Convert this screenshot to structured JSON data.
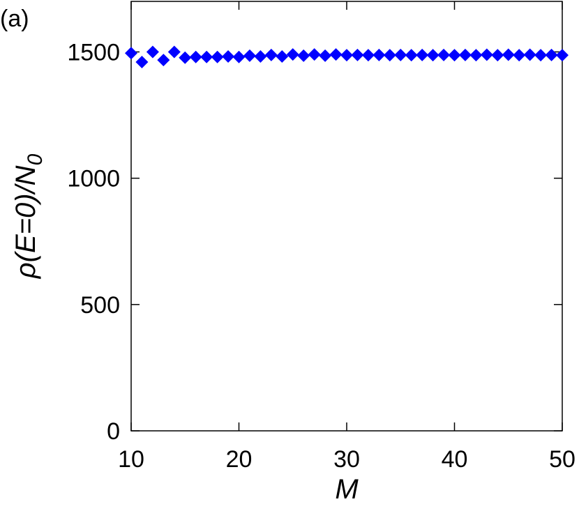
{
  "chart_data": {
    "type": "scatter",
    "annotation": "(a)",
    "xlabel": "M",
    "ylabel": {
      "main": "ρ(E=0)/N",
      "sub": "0"
    },
    "xlim": [
      10,
      50
    ],
    "ylim": [
      0,
      1700
    ],
    "xticks": [
      10,
      20,
      30,
      40,
      50
    ],
    "yticks": [
      0,
      500,
      1000,
      1500
    ],
    "marker": "diamond",
    "series": [
      {
        "color": "#0000ff",
        "x": [
          10,
          11,
          12,
          13,
          14,
          15,
          16,
          17,
          18,
          19,
          20,
          21,
          22,
          23,
          24,
          25,
          26,
          27,
          28,
          29,
          30,
          31,
          32,
          33,
          34,
          35,
          36,
          37,
          38,
          39,
          40,
          41,
          42,
          43,
          44,
          45,
          46,
          47,
          48,
          49,
          50
        ],
        "values": [
          1495,
          1460,
          1500,
          1468,
          1500,
          1477,
          1480,
          1480,
          1480,
          1482,
          1480,
          1485,
          1482,
          1488,
          1482,
          1490,
          1485,
          1490,
          1485,
          1490,
          1487,
          1488,
          1487,
          1488,
          1487,
          1488,
          1487,
          1488,
          1487,
          1488,
          1487,
          1488,
          1487,
          1489,
          1487,
          1489,
          1487,
          1489,
          1487,
          1488,
          1487
        ]
      }
    ]
  }
}
